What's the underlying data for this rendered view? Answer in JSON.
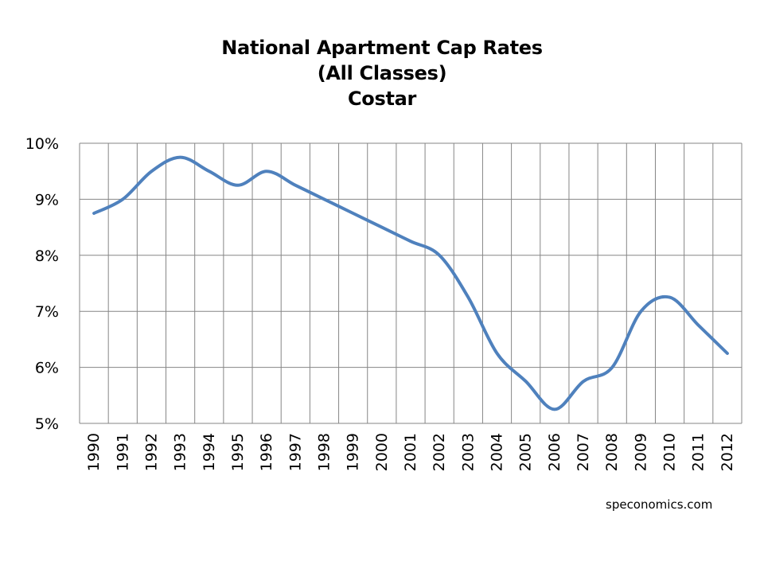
{
  "chart_data": {
    "type": "line",
    "title": [
      "National Apartment Cap Rates",
      "(All Classes)",
      "Costar"
    ],
    "xlabel": "",
    "ylabel": "",
    "x": [
      "1990",
      "1991",
      "1992",
      "1993",
      "1994",
      "1995",
      "1996",
      "1997",
      "1998",
      "1999",
      "2000",
      "2001",
      "2002",
      "2003",
      "2004",
      "2005",
      "2006",
      "2007",
      "2008",
      "2009",
      "2010",
      "2011",
      "2012"
    ],
    "series": [
      {
        "values": [
          8.75,
          9.0,
          9.5,
          9.75,
          9.5,
          9.25,
          9.5,
          9.25,
          9.0,
          8.75,
          8.5,
          8.25,
          8.0,
          7.25,
          6.25,
          5.75,
          5.25,
          5.75,
          6.0,
          7.0,
          7.25,
          6.75,
          6.25
        ]
      }
    ],
    "ylim": [
      5,
      10
    ],
    "yticks": [
      "5%",
      "6%",
      "7%",
      "8%",
      "9%",
      "10%"
    ],
    "grid": true,
    "line_color": "#4f81bd",
    "grid_color": "#868686"
  },
  "credit": "speconomics.com"
}
